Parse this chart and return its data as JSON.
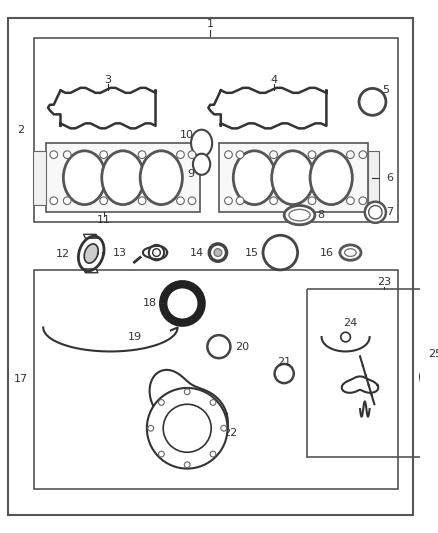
{
  "background": "#ffffff",
  "line_color": "#333333",
  "figsize": [
    4.38,
    5.33
  ],
  "dpi": 100
}
